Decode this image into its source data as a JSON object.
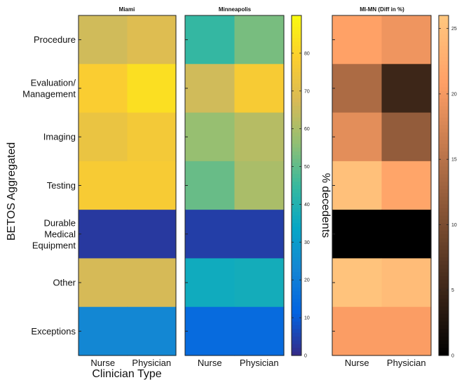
{
  "chart_data": {
    "type": "heatmap",
    "ylabel": "BETOS Aggregated",
    "xlabel": "Clinician Type",
    "rows": [
      "Procedure",
      "Evaluation/\nManagement",
      "Imaging",
      "Testing",
      "Durable\nMedical\nEquipment",
      "Other",
      "Exceptions"
    ],
    "columns": [
      "Nurse",
      "Physician"
    ],
    "panels": [
      {
        "title": "Miami",
        "colormap": "parula",
        "clim": [
          0,
          90
        ],
        "values": [
          [
            66,
            69
          ],
          [
            78,
            83
          ],
          [
            73,
            76
          ],
          [
            77,
            77
          ],
          [
            3,
            3
          ],
          [
            67,
            67
          ],
          [
            23,
            23
          ]
        ],
        "colorbar": {
          "label": "% decedents",
          "ticks": [
            0,
            10,
            20,
            30,
            40,
            50,
            60,
            70,
            80
          ]
        }
      },
      {
        "title": "Minneapolis",
        "colormap": "parula",
        "clim": [
          0,
          90
        ],
        "values": [
          [
            44,
            53
          ],
          [
            66,
            77
          ],
          [
            57,
            62
          ],
          [
            51,
            60
          ],
          [
            4,
            4
          ],
          [
            36,
            37
          ],
          [
            14,
            14
          ]
        ]
      },
      {
        "title": "MI-MN (Diff in %)",
        "colormap": "copper",
        "clim": [
          0,
          26
        ],
        "values": [
          [
            21,
            19.5
          ],
          [
            14,
            5
          ],
          [
            18.5,
            12
          ],
          [
            25,
            21.5
          ],
          [
            0,
            0
          ],
          [
            25.5,
            24.5
          ],
          [
            20.5,
            20.5
          ]
        ],
        "colorbar": {
          "ticks": [
            0,
            5,
            10,
            15,
            20,
            25
          ]
        }
      }
    ]
  }
}
